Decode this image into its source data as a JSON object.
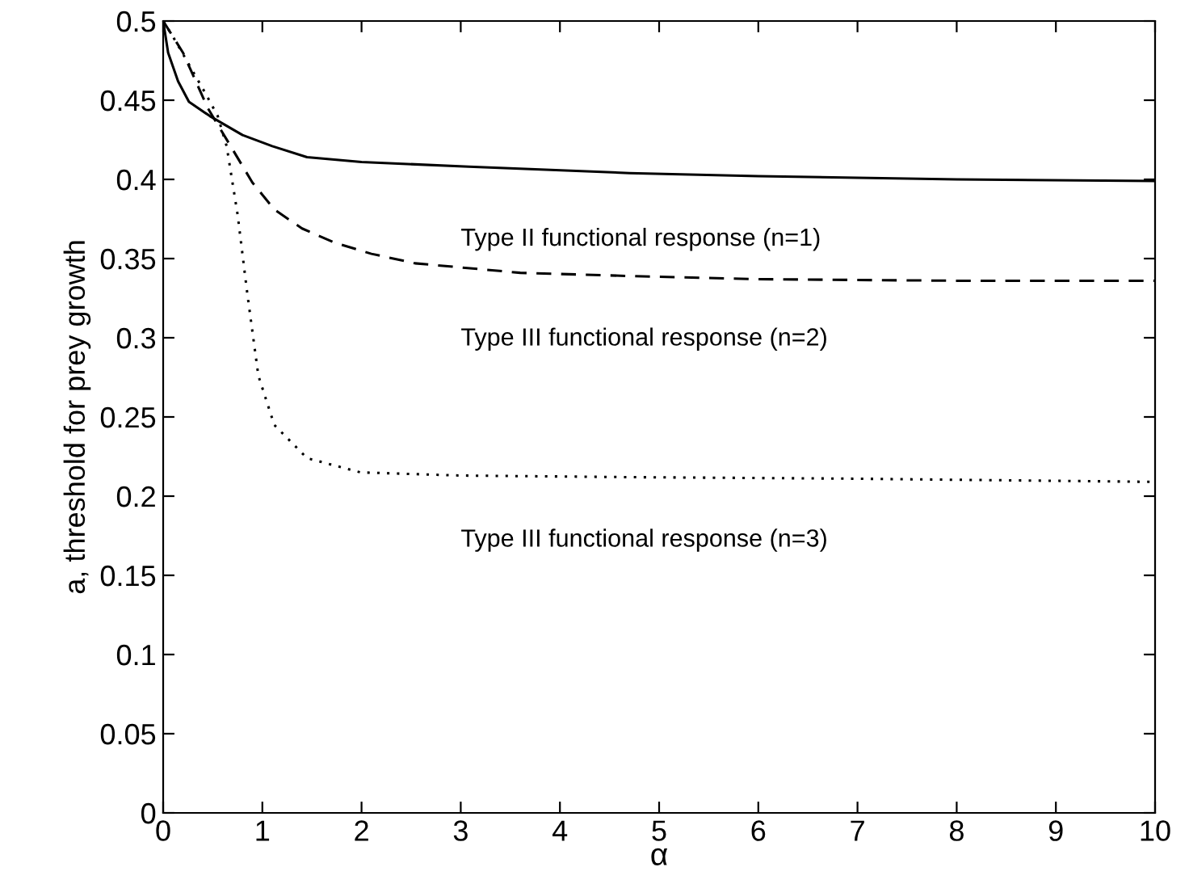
{
  "chart_data": {
    "type": "line",
    "xlabel": "α",
    "ylabel": "a, threshold for prey growth",
    "xlim": [
      0,
      10
    ],
    "ylim": [
      0,
      0.5
    ],
    "xticks": [
      0,
      1,
      2,
      3,
      4,
      5,
      6,
      7,
      8,
      9,
      10
    ],
    "yticks": [
      0,
      0.05,
      0.1,
      0.15,
      0.2,
      0.25,
      0.3,
      0.35,
      0.4,
      0.45,
      0.5
    ],
    "grid": false,
    "legend": false,
    "marker": "none",
    "series": [
      {
        "color": "#000000",
        "line_style": "solid",
        "x": [
          0,
          0.05,
          0.15,
          0.26,
          0.47,
          0.8,
          1.1,
          1.45,
          2,
          3.08,
          4.7,
          6,
          8,
          10
        ],
        "values": [
          0.5,
          0.48,
          0.462,
          0.449,
          0.44,
          0.428,
          0.421,
          0.414,
          0.411,
          0.408,
          0.404,
          0.402,
          0.4,
          0.399
        ]
      },
      {
        "color": "#000000",
        "line_style": "dashed",
        "x": [
          0,
          0.2,
          0.45,
          0.68,
          0.9,
          1.12,
          1.4,
          1.73,
          2.1,
          2.54,
          3.6,
          4.7,
          6,
          8,
          10
        ],
        "values": [
          0.5,
          0.48,
          0.445,
          0.421,
          0.398,
          0.381,
          0.369,
          0.36,
          0.353,
          0.347,
          0.341,
          0.339,
          0.337,
          0.336,
          0.336
        ]
      },
      {
        "color": "#000000",
        "line_style": "dotted",
        "x": [
          0,
          0.1,
          0.42,
          0.55,
          0.64,
          0.75,
          0.85,
          0.96,
          1.12,
          1.45,
          1.99,
          3,
          4.7,
          7,
          10
        ],
        "values": [
          0.5,
          0.49,
          0.455,
          0.44,
          0.421,
          0.378,
          0.327,
          0.276,
          0.245,
          0.224,
          0.215,
          0.213,
          0.212,
          0.211,
          0.209
        ]
      }
    ],
    "annotations": [
      "Type II functional response (n=1)",
      "Type III functional response (n=2)",
      "Type III functional response (n=3)"
    ]
  }
}
